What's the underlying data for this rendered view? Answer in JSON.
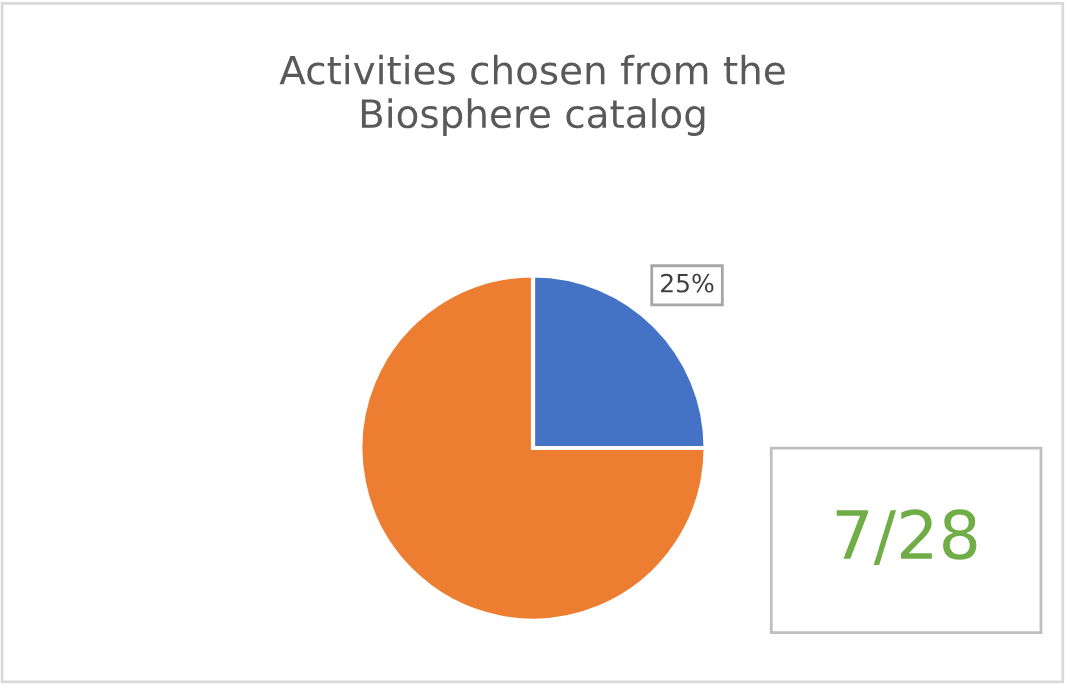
{
  "chart_data": {
    "type": "pie",
    "title": "Activities chosen from the\nBiosphere catalog",
    "categories": [
      null,
      null
    ],
    "values": [
      25,
      75
    ],
    "colors": [
      "#4472c4",
      "#ed7d31"
    ],
    "value_labels": [
      "25%",
      null
    ],
    "annotations": [
      "7/28"
    ]
  }
}
